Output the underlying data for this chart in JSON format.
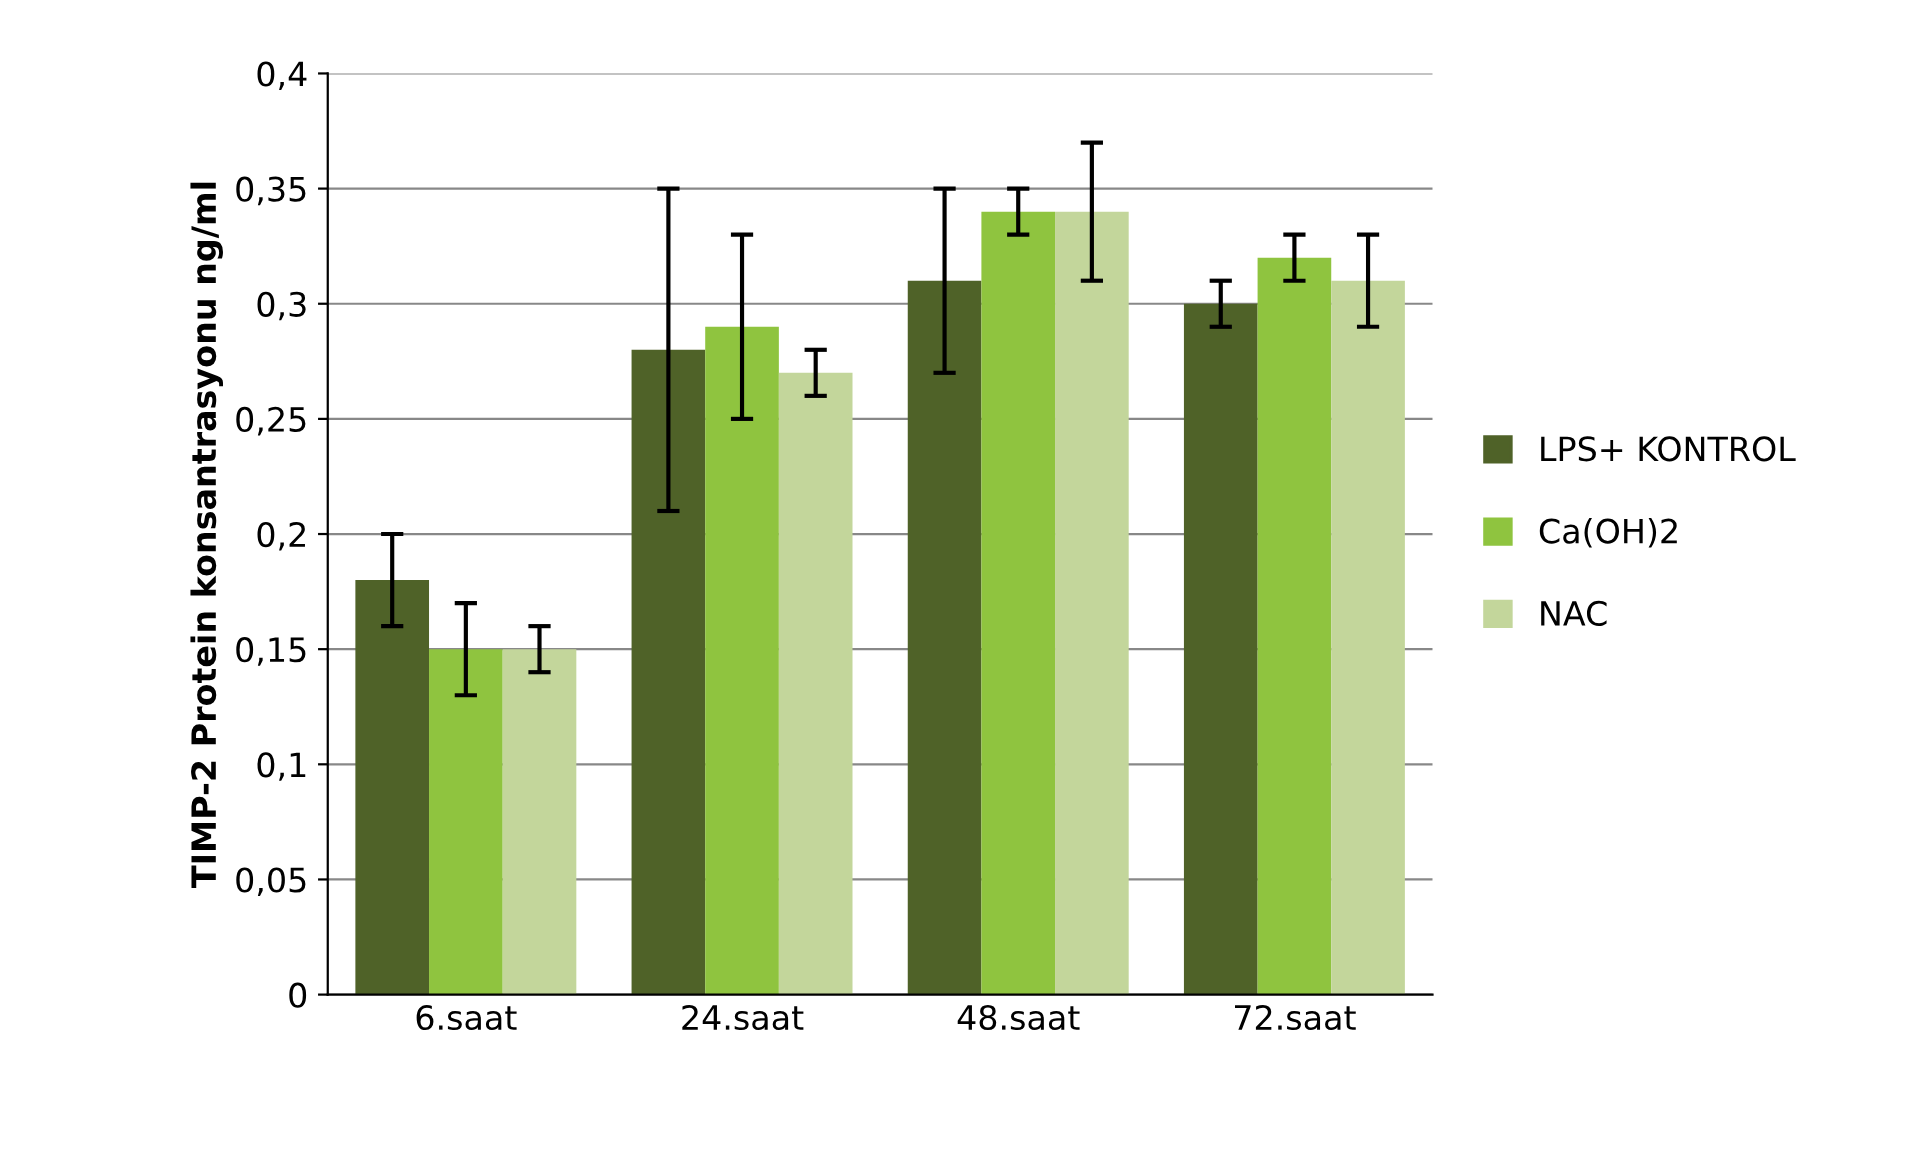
{
  "chart_data": {
    "type": "bar",
    "ylabel": "TIMP-2 Protein konsantrasyonu ng/ml",
    "categories": [
      "6.saat",
      "24.saat",
      "48.saat",
      "72.saat"
    ],
    "series": [
      {
        "name": "LPS+ KONTROL",
        "color": "#4f6228",
        "values": [
          0.18,
          0.28,
          0.31,
          0.3
        ],
        "errors": [
          0.02,
          0.07,
          0.04,
          0.01
        ]
      },
      {
        "name": "Ca(OH)2",
        "color": "#8fc43f",
        "values": [
          0.15,
          0.29,
          0.34,
          0.32
        ],
        "errors": [
          0.02,
          0.04,
          0.01,
          0.01
        ]
      },
      {
        "name": "NAC",
        "color": "#c3d69b",
        "values": [
          0.15,
          0.27,
          0.34,
          0.31
        ],
        "errors": [
          0.01,
          0.01,
          0.03,
          0.02
        ]
      }
    ],
    "ylim": [
      0,
      0.4
    ],
    "yticks": [
      0,
      {
        "value": 0.05,
        "label": "0,05"
      },
      {
        "value": 0.1,
        "label": "0,1"
      },
      {
        "value": 0.15,
        "label": "0,15"
      },
      {
        "value": 0.2,
        "label": "0,2"
      },
      {
        "value": 0.25,
        "label": "0,25"
      },
      {
        "value": 0.3,
        "label": "0,3"
      },
      {
        "value": 0.35,
        "label": "0,35"
      },
      {
        "value": 0.4,
        "label": "0,4"
      }
    ],
    "grid": "y",
    "legend": "right"
  }
}
